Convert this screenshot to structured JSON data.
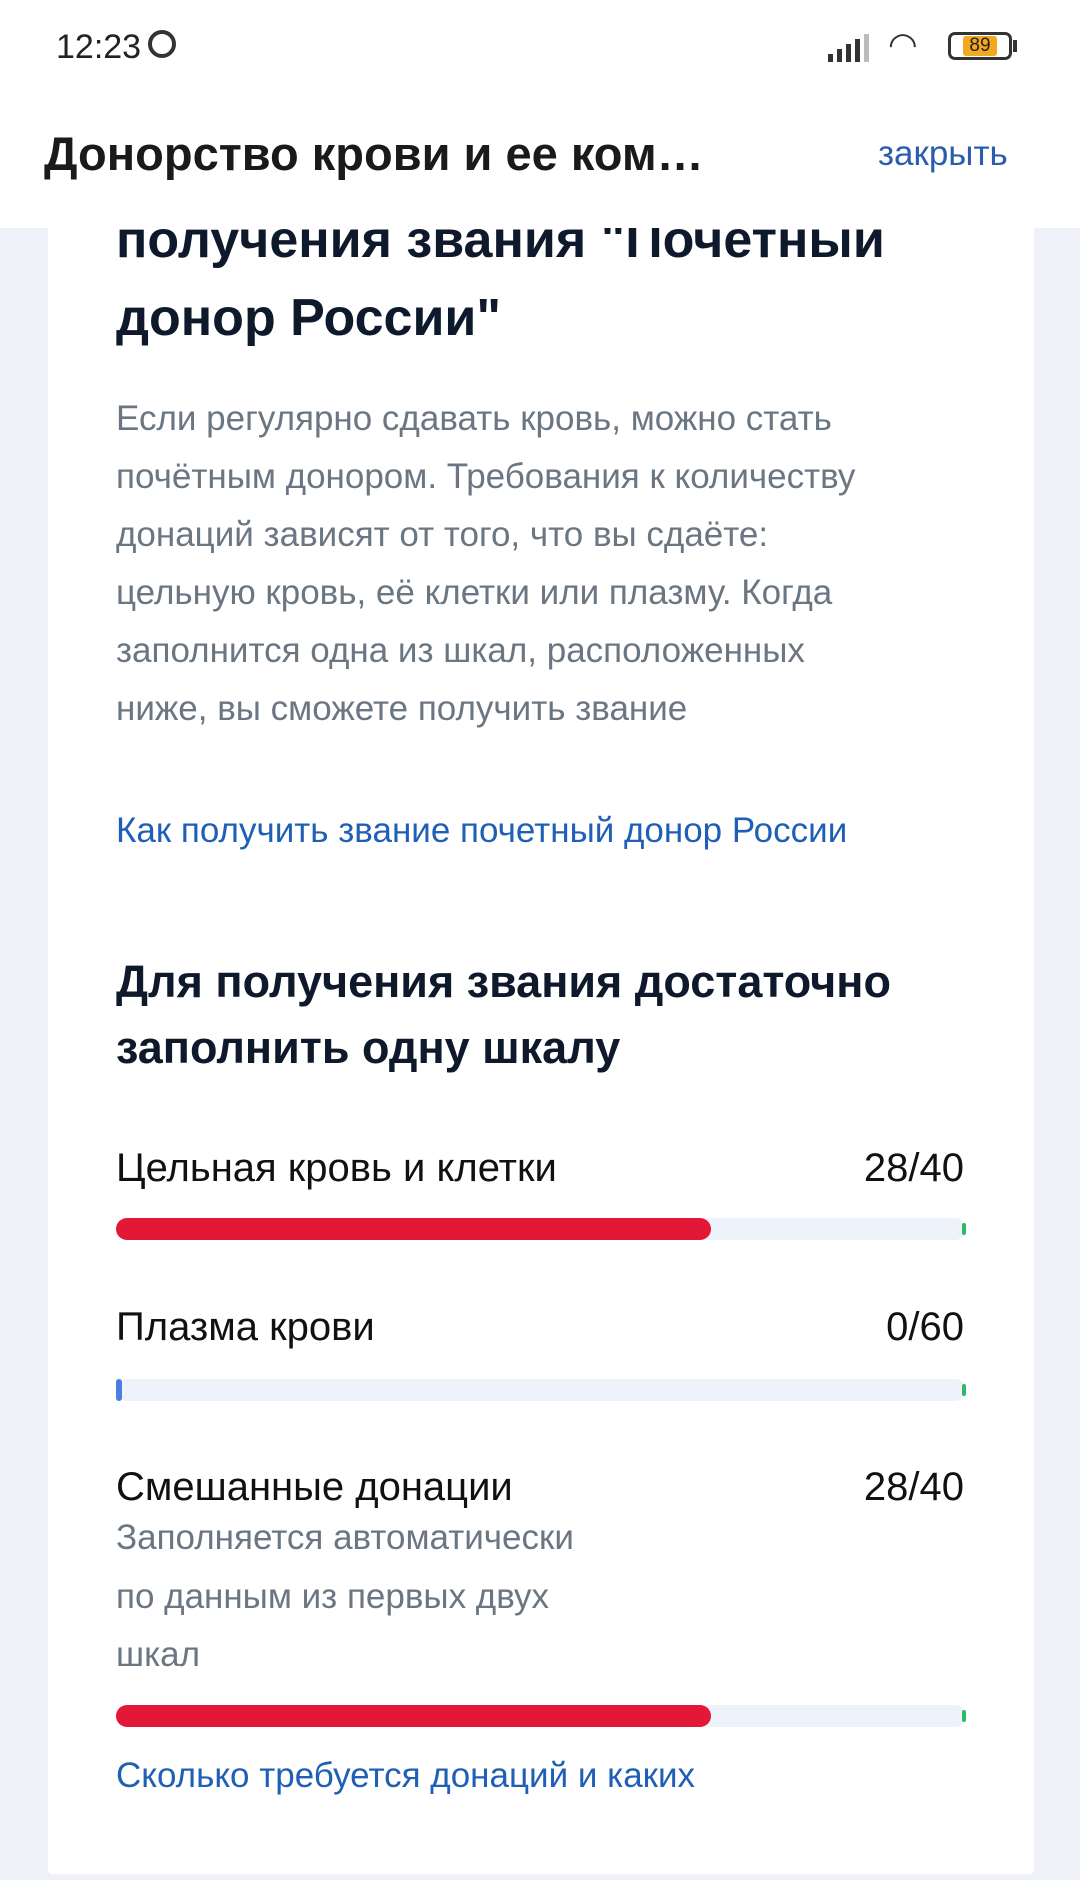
{
  "status_bar": {
    "time": "12:23",
    "battery": "89",
    "icons": [
      "alarm-icon",
      "signal-icon",
      "wifi-icon",
      "battery-icon"
    ]
  },
  "header": {
    "title": "Донорство крови и ее ком…",
    "close_label": "закрыть"
  },
  "section": {
    "heading_lines": [
      "получения звания \"Почетный",
      "донор России\""
    ],
    "description_lines": [
      "Если регулярно сдавать кровь, можно стать",
      "почётным донором. Требования к количеству",
      "донаций зависят от того, что вы сдаёте:",
      "цельную кровь, её клетки или плазму. Когда",
      "заполнится одна из шкал, расположенных",
      "ниже, вы сможете получить звание"
    ],
    "link": "Как получить звание почетный донор России"
  },
  "progress": {
    "heading_lines": [
      "Для получения звания достаточно",
      "заполнить одну шкалу"
    ],
    "scales": [
      {
        "label": "Цельная кровь и клетки",
        "value": "28/40",
        "current": 28,
        "total": 40,
        "color": "#e31837"
      },
      {
        "label": "Плазма крови",
        "value": "0/60",
        "current": 0,
        "total": 60,
        "color": "#4a7fe0"
      },
      {
        "label": "Смешанные донации",
        "value": "28/40",
        "current": 28,
        "total": 40,
        "color": "#e31837",
        "note_lines": [
          "Заполняется автоматически",
          "по данным из первых двух",
          "шкал"
        ]
      }
    ],
    "link": "Сколько требуется донаций и каких"
  },
  "colors": {
    "accent_link": "#1f5fb5",
    "bar_track": "#edf2fb",
    "bar_end": "#2fb866"
  }
}
